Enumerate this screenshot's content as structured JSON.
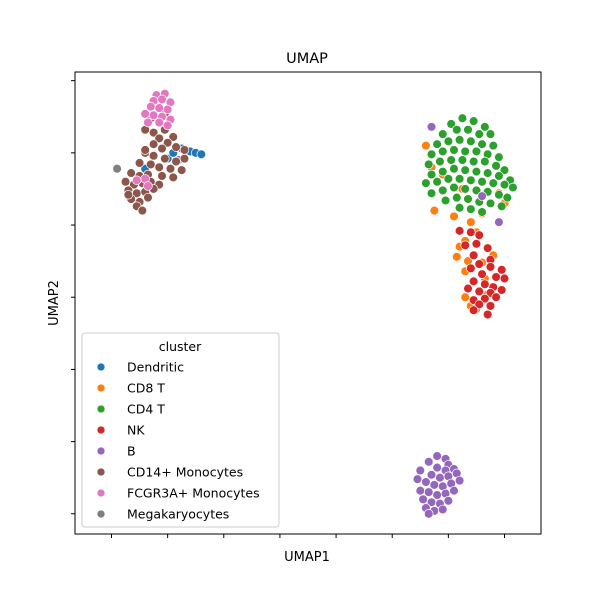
{
  "chart_data": {
    "type": "scatter",
    "title": "UMAP",
    "xlabel": "UMAP1",
    "ylabel": "UMAP2",
    "xlim": [
      -1.3,
      15.3
    ],
    "ylim": [
      -8.4,
      23.6
    ],
    "xticks": [
      0,
      2,
      4,
      6,
      8,
      10,
      12,
      14
    ],
    "yticks": [
      -7,
      -2,
      3,
      8,
      13,
      18,
      23
    ],
    "show_tick_labels": false,
    "grid": false,
    "legend": {
      "title": "cluster",
      "placement": "lower-left"
    },
    "series": [
      {
        "name": "Dendritic",
        "color": "#1f77b4",
        "points": [
          [
            2.5,
            18.3
          ],
          [
            2.8,
            18.1
          ],
          [
            3.0,
            18.0
          ],
          [
            3.2,
            17.9
          ],
          [
            2.0,
            17.6
          ],
          [
            1.2,
            16.9
          ],
          [
            2.2,
            18.0
          ]
        ]
      },
      {
        "name": "CD8 T",
        "color": "#ff7f0e",
        "points": [
          [
            11.2,
            18.5
          ],
          [
            11.4,
            17.0
          ],
          [
            11.8,
            16.5
          ],
          [
            12.5,
            15.5
          ],
          [
            13.2,
            16.0
          ],
          [
            13.8,
            15.2
          ],
          [
            14.0,
            14.5
          ],
          [
            11.5,
            14.0
          ],
          [
            12.2,
            13.6
          ],
          [
            12.8,
            13.2
          ],
          [
            13.2,
            13.8
          ],
          [
            13.0,
            12.5
          ],
          [
            12.6,
            11.9
          ],
          [
            12.4,
            11.5
          ],
          [
            12.3,
            10.8
          ],
          [
            12.7,
            10.5
          ],
          [
            13.2,
            10.4
          ],
          [
            13.6,
            10.9
          ],
          [
            12.6,
            9.8
          ],
          [
            13.3,
            9.3
          ],
          [
            12.6,
            8.0
          ],
          [
            13.4,
            8.2
          ],
          [
            13.0,
            7.2
          ],
          [
            12.8,
            7.4
          ]
        ]
      },
      {
        "name": "CD4 T",
        "color": "#2ca02c",
        "points": [
          [
            12.1,
            20.0
          ],
          [
            12.5,
            20.4
          ],
          [
            12.9,
            20.2
          ],
          [
            13.3,
            19.8
          ],
          [
            11.8,
            19.3
          ],
          [
            12.3,
            19.6
          ],
          [
            12.7,
            19.6
          ],
          [
            13.1,
            19.3
          ],
          [
            13.5,
            19.3
          ],
          [
            11.6,
            18.6
          ],
          [
            12.0,
            18.8
          ],
          [
            12.4,
            18.9
          ],
          [
            12.8,
            18.8
          ],
          [
            13.2,
            18.6
          ],
          [
            13.6,
            18.5
          ],
          [
            11.4,
            17.9
          ],
          [
            11.8,
            18.1
          ],
          [
            12.2,
            18.2
          ],
          [
            12.6,
            18.1
          ],
          [
            13.0,
            18.1
          ],
          [
            13.4,
            17.9
          ],
          [
            13.8,
            17.7
          ],
          [
            11.3,
            17.2
          ],
          [
            11.7,
            17.4
          ],
          [
            12.1,
            17.5
          ],
          [
            12.5,
            17.5
          ],
          [
            12.9,
            17.4
          ],
          [
            13.3,
            17.4
          ],
          [
            13.7,
            17.1
          ],
          [
            14.0,
            16.8
          ],
          [
            11.4,
            16.5
          ],
          [
            11.8,
            16.7
          ],
          [
            12.2,
            16.9
          ],
          [
            12.6,
            16.8
          ],
          [
            13.0,
            16.7
          ],
          [
            13.4,
            16.6
          ],
          [
            13.8,
            16.4
          ],
          [
            14.2,
            16.1
          ],
          [
            11.2,
            15.9
          ],
          [
            11.6,
            16.0
          ],
          [
            12.0,
            16.2
          ],
          [
            12.4,
            16.2
          ],
          [
            12.8,
            16.1
          ],
          [
            13.2,
            16.0
          ],
          [
            13.6,
            15.9
          ],
          [
            14.0,
            15.8
          ],
          [
            14.3,
            15.6
          ],
          [
            11.4,
            15.2
          ],
          [
            11.8,
            15.4
          ],
          [
            12.2,
            15.6
          ],
          [
            12.6,
            15.5
          ],
          [
            13.0,
            15.4
          ],
          [
            13.4,
            15.3
          ],
          [
            13.8,
            15.1
          ],
          [
            14.1,
            14.9
          ],
          [
            11.9,
            14.7
          ],
          [
            12.3,
            14.9
          ],
          [
            12.7,
            14.8
          ],
          [
            13.1,
            14.6
          ],
          [
            13.5,
            14.5
          ],
          [
            13.9,
            14.3
          ],
          [
            12.4,
            14.2
          ],
          [
            12.8,
            14.1
          ],
          [
            13.2,
            13.9
          ]
        ]
      },
      {
        "name": "NK",
        "color": "#d62728",
        "points": [
          [
            12.4,
            12.6
          ],
          [
            12.8,
            12.5
          ],
          [
            13.1,
            12.3
          ],
          [
            12.6,
            11.6
          ],
          [
            13.0,
            11.7
          ],
          [
            13.4,
            11.4
          ],
          [
            12.9,
            10.9
          ],
          [
            13.5,
            10.6
          ],
          [
            13.1,
            10.3
          ],
          [
            13.5,
            10.1
          ],
          [
            12.8,
            10.0
          ],
          [
            13.9,
            9.9
          ],
          [
            13.2,
            9.6
          ],
          [
            13.7,
            9.4
          ],
          [
            14.0,
            9.3
          ],
          [
            12.9,
            9.1
          ],
          [
            13.3,
            8.9
          ],
          [
            13.6,
            8.7
          ],
          [
            12.7,
            8.6
          ],
          [
            13.1,
            8.4
          ],
          [
            13.5,
            8.3
          ],
          [
            13.9,
            8.5
          ],
          [
            12.9,
            7.8
          ],
          [
            13.3,
            7.9
          ],
          [
            13.7,
            8.0
          ],
          [
            13.1,
            7.5
          ],
          [
            13.5,
            7.4
          ],
          [
            12.9,
            7.1
          ],
          [
            13.4,
            6.8
          ]
        ]
      },
      {
        "name": "B",
        "color": "#9467bd",
        "points": [
          [
            13.2,
            15.0
          ],
          [
            13.8,
            13.2
          ],
          [
            11.4,
            19.8
          ],
          [
            2.4,
            17.5
          ],
          [
            11.6,
            -3.0
          ],
          [
            11.9,
            -3.2
          ],
          [
            12.0,
            -3.6
          ],
          [
            11.3,
            -3.4
          ],
          [
            11.6,
            -3.8
          ],
          [
            11.9,
            -4.0
          ],
          [
            12.2,
            -3.9
          ],
          [
            11.0,
            -4.0
          ],
          [
            11.4,
            -4.3
          ],
          [
            11.7,
            -4.5
          ],
          [
            12.0,
            -4.4
          ],
          [
            12.3,
            -4.2
          ],
          [
            10.9,
            -4.6
          ],
          [
            11.2,
            -4.8
          ],
          [
            11.5,
            -5.0
          ],
          [
            11.8,
            -5.1
          ],
          [
            12.1,
            -4.9
          ],
          [
            12.4,
            -4.7
          ],
          [
            11.0,
            -5.4
          ],
          [
            11.3,
            -5.5
          ],
          [
            11.6,
            -5.7
          ],
          [
            11.9,
            -5.6
          ],
          [
            12.2,
            -5.4
          ],
          [
            11.1,
            -6.0
          ],
          [
            11.4,
            -6.2
          ],
          [
            11.7,
            -6.3
          ],
          [
            12.0,
            -6.1
          ],
          [
            11.2,
            -6.6
          ],
          [
            11.5,
            -6.8
          ],
          [
            11.8,
            -6.7
          ],
          [
            11.3,
            -7.0
          ]
        ]
      },
      {
        "name": "CD14+ Monocytes",
        "color": "#8c564b",
        "points": [
          [
            1.4,
            20.4
          ],
          [
            1.9,
            20.7
          ],
          [
            1.2,
            19.6
          ],
          [
            1.5,
            19.4
          ],
          [
            1.9,
            19.6
          ],
          [
            2.2,
            19.1
          ],
          [
            1.7,
            19.0
          ],
          [
            2.0,
            18.7
          ],
          [
            2.3,
            18.4
          ],
          [
            1.5,
            18.6
          ],
          [
            1.8,
            18.3
          ],
          [
            2.6,
            18.2
          ],
          [
            1.2,
            18.0
          ],
          [
            1.5,
            17.8
          ],
          [
            1.9,
            17.6
          ],
          [
            2.3,
            17.4
          ],
          [
            2.6,
            17.6
          ],
          [
            1.0,
            17.3
          ],
          [
            1.4,
            17.2
          ],
          [
            1.7,
            17.0
          ],
          [
            2.1,
            16.9
          ],
          [
            2.5,
            16.8
          ],
          [
            0.7,
            16.6
          ],
          [
            1.0,
            16.4
          ],
          [
            1.3,
            16.5
          ],
          [
            1.8,
            16.4
          ],
          [
            2.2,
            16.3
          ],
          [
            0.5,
            16.0
          ],
          [
            0.8,
            15.8
          ],
          [
            1.1,
            15.9
          ],
          [
            1.4,
            16.0
          ],
          [
            1.7,
            15.8
          ],
          [
            0.6,
            15.4
          ],
          [
            0.9,
            15.2
          ],
          [
            1.2,
            15.3
          ],
          [
            1.5,
            15.5
          ],
          [
            0.7,
            14.8
          ],
          [
            1.0,
            14.6
          ],
          [
            1.3,
            14.9
          ],
          [
            0.9,
            14.3
          ],
          [
            1.1,
            14.0
          ],
          [
            0.6,
            15.1
          ],
          [
            1.2,
            18.2
          ]
        ]
      },
      {
        "name": "FCGR3A+ Monocytes",
        "color": "#e377c2",
        "points": [
          [
            1.6,
            22.0
          ],
          [
            1.9,
            22.1
          ],
          [
            1.5,
            21.6
          ],
          [
            1.8,
            21.7
          ],
          [
            2.1,
            21.5
          ],
          [
            1.4,
            21.2
          ],
          [
            1.7,
            21.1
          ],
          [
            2.0,
            21.0
          ],
          [
            1.2,
            20.7
          ],
          [
            1.5,
            20.6
          ],
          [
            1.8,
            20.5
          ],
          [
            2.1,
            20.3
          ],
          [
            1.3,
            20.1
          ],
          [
            1.7,
            20.1
          ],
          [
            2.0,
            19.9
          ],
          [
            1.2,
            16.2
          ],
          [
            0.9,
            16.1
          ],
          [
            1.3,
            15.7
          ]
        ]
      },
      {
        "name": "Megakaryocytes",
        "color": "#7f7f7f",
        "points": [
          [
            0.2,
            16.9
          ]
        ]
      }
    ]
  }
}
